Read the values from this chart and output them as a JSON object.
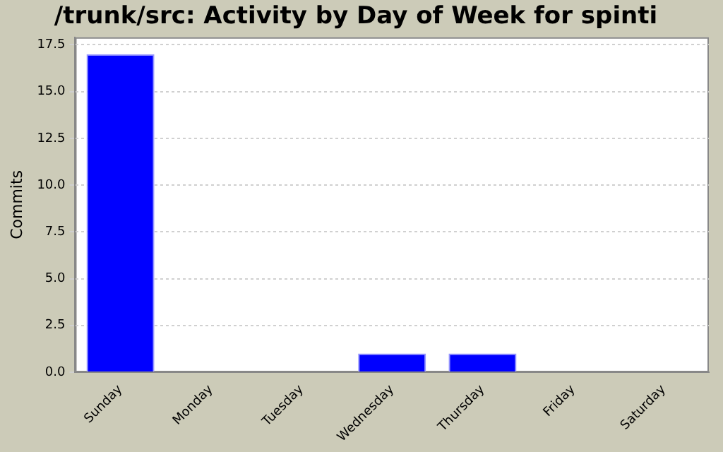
{
  "chart_data": {
    "type": "bar",
    "title": "/trunk/src: Activity by Day of Week for spinti",
    "ylabel": "Commits",
    "categories": [
      "Sunday",
      "Monday",
      "Tuesday",
      "Wednesday",
      "Thursday",
      "Friday",
      "Saturday"
    ],
    "values": [
      17,
      0,
      0,
      1,
      1,
      0,
      0
    ],
    "color": "#0000ff",
    "ylim": [
      0,
      17.9
    ],
    "yticks": [
      {
        "value": 0,
        "label": "0.0"
      },
      {
        "value": 2.5,
        "label": "2.5"
      },
      {
        "value": 5,
        "label": "5.0"
      },
      {
        "value": 7.5,
        "label": "7.5"
      },
      {
        "value": 10,
        "label": "10.0"
      },
      {
        "value": 12.5,
        "label": "12.5"
      },
      {
        "value": 15,
        "label": "15.0"
      },
      {
        "value": 17.5,
        "label": "17.5"
      }
    ],
    "grid": "y",
    "legend": false
  }
}
